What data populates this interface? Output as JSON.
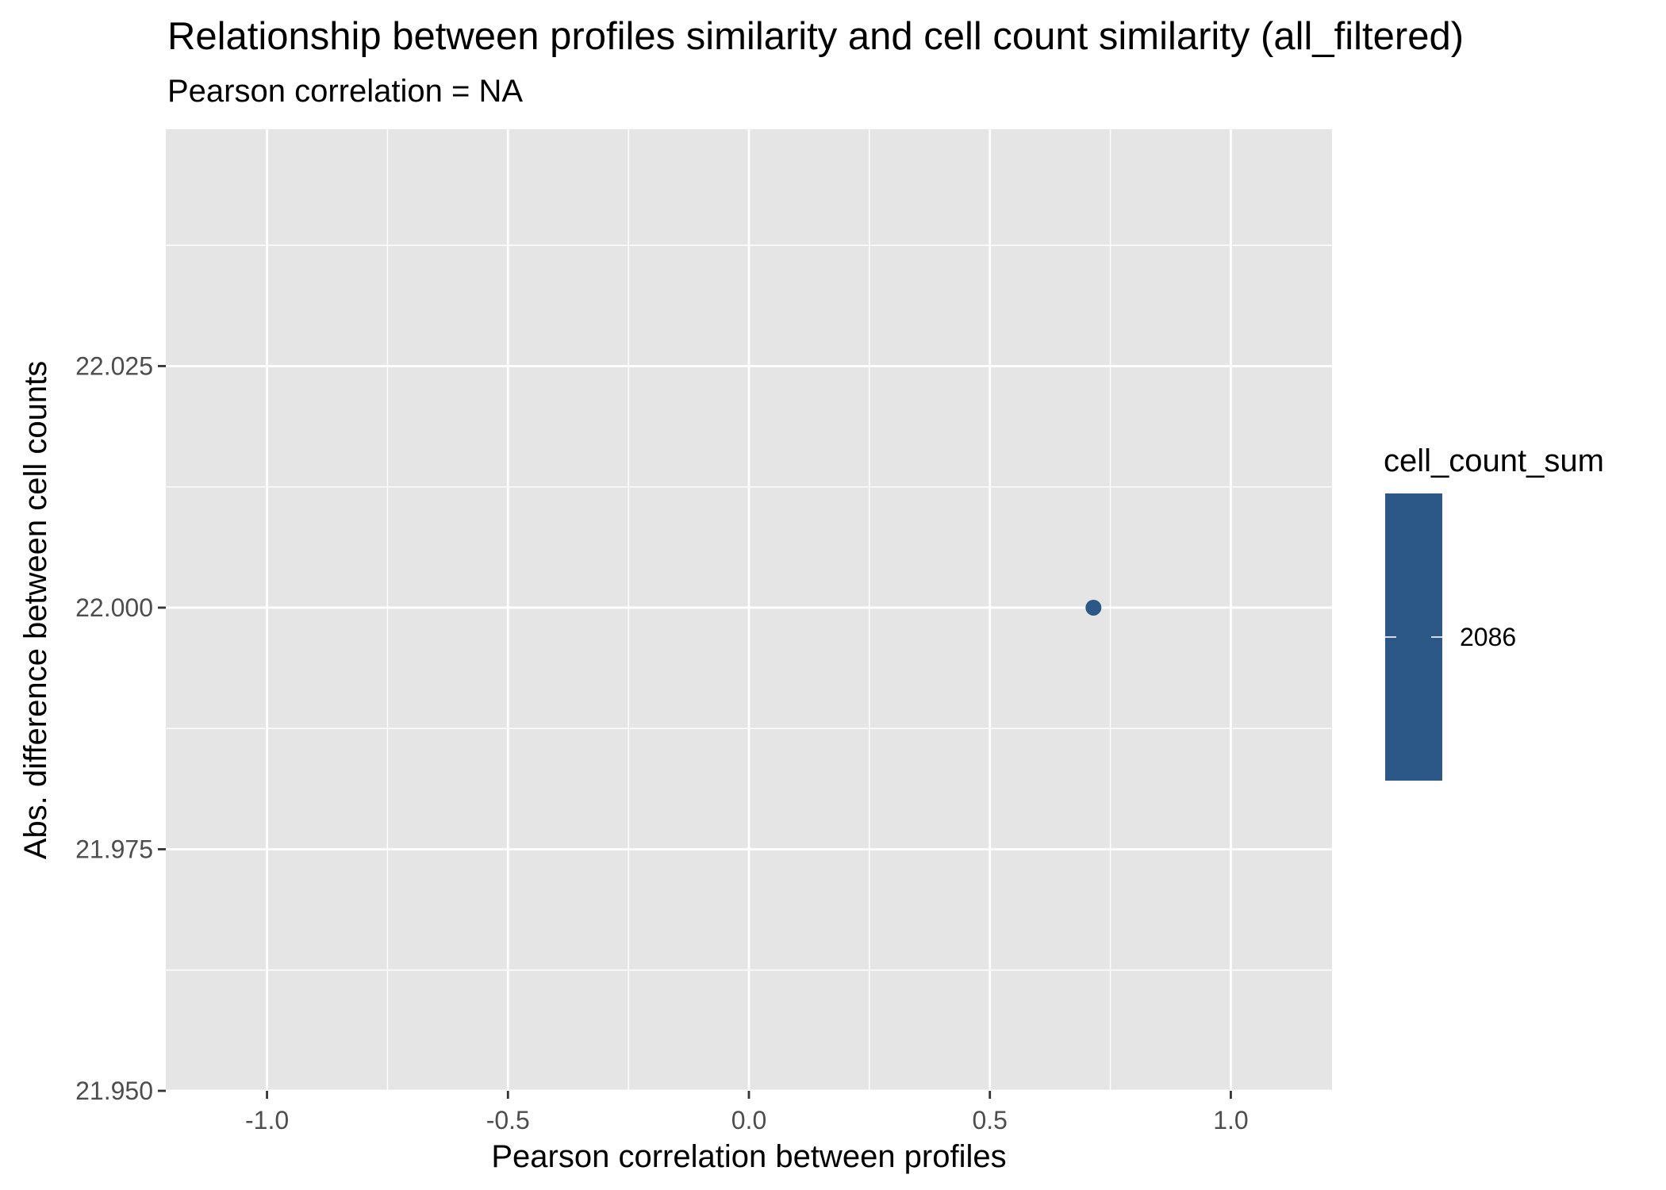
{
  "chart_data": {
    "type": "scatter",
    "title": "Relationship between profiles similarity and cell count similarity (all_filtered)",
    "subtitle": "Pearson correlation = NA",
    "xlabel": "Pearson correlation between profiles",
    "ylabel": "Abs. difference between cell counts",
    "xlim": [
      -1.21,
      1.21
    ],
    "ylim": [
      21.95,
      22.0495
    ],
    "x_ticks": [
      -1.0,
      -0.5,
      0.0,
      0.5,
      1.0
    ],
    "x_tick_labels": [
      "-1.0",
      "-0.5",
      "0.0",
      "0.5",
      "1.0"
    ],
    "y_ticks": [
      21.95,
      21.975,
      22.0,
      22.025
    ],
    "y_tick_labels": [
      "21.950",
      "21.975",
      "22.000",
      "22.025"
    ],
    "grid": true,
    "points": [
      {
        "x": 0.715,
        "y": 22.0,
        "cell_count_sum": 2086
      }
    ],
    "legend": {
      "title": "cell_count_sum",
      "type": "colorbar",
      "placement": "right",
      "labels": [
        "2086"
      ],
      "values": [
        2086
      ]
    },
    "colors": {
      "panel_background": "#e5e5e5",
      "grid_line": "#ffffff",
      "point": "#2b5886",
      "colorbar": "#2b5886",
      "tick_label": "#4d4d4d",
      "tick_mark": "#333333"
    }
  }
}
